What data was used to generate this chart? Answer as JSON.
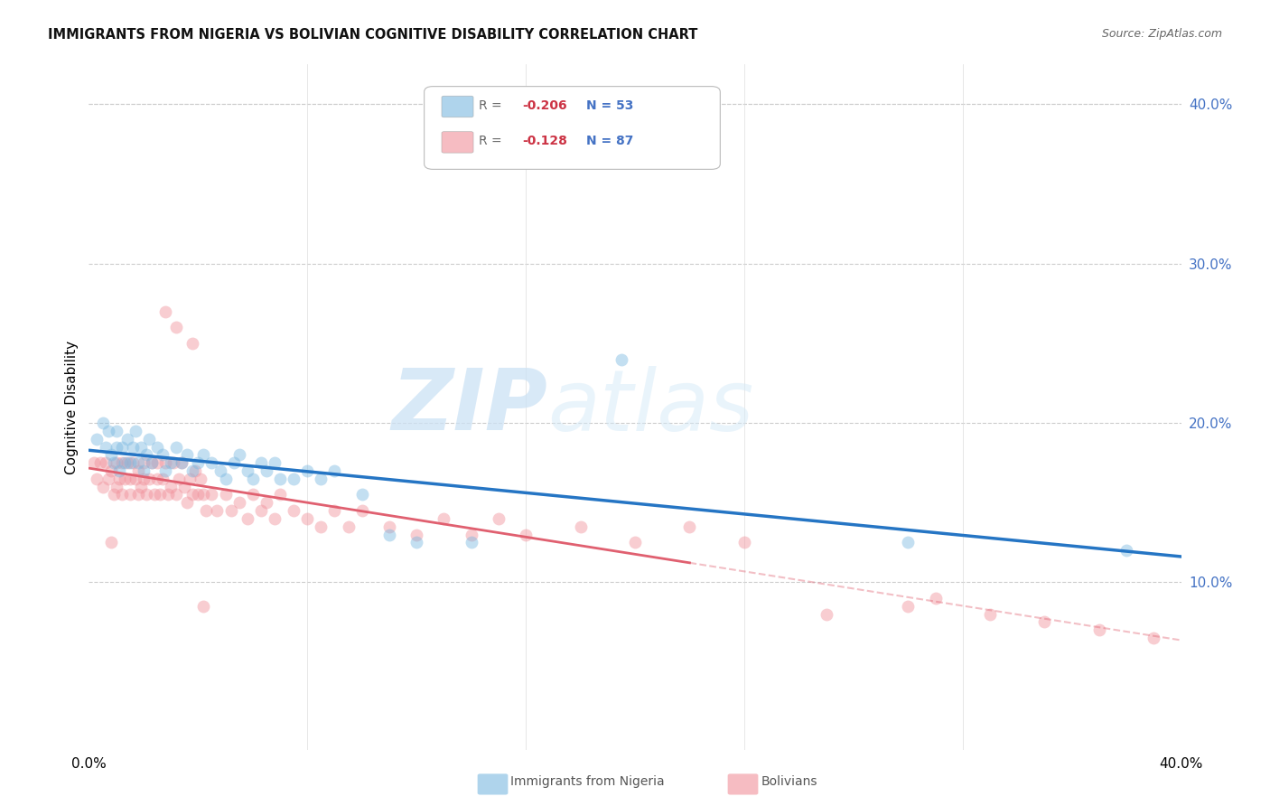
{
  "title": "IMMIGRANTS FROM NIGERIA VS BOLIVIAN COGNITIVE DISABILITY CORRELATION CHART",
  "source": "Source: ZipAtlas.com",
  "ylabel": "Cognitive Disability",
  "xlim": [
    0.0,
    0.4
  ],
  "ylim": [
    -0.005,
    0.425
  ],
  "yticks": [
    0.1,
    0.2,
    0.3,
    0.4
  ],
  "ytick_labels": [
    "10.0%",
    "20.0%",
    "30.0%",
    "40.0%"
  ],
  "nigeria_color": "#7ab8e0",
  "bolivia_color": "#f0909a",
  "nigeria_line_color": "#2575c4",
  "bolivia_line_color": "#e06070",
  "watermark_zip_color": "#cce0f0",
  "watermark_atlas_color": "#d8eaf8",
  "nigeria_R": -0.206,
  "nigeria_N": 53,
  "bolivia_R": -0.128,
  "bolivia_N": 87,
  "nigeria_scatter_x": [
    0.003,
    0.005,
    0.006,
    0.007,
    0.008,
    0.009,
    0.01,
    0.01,
    0.011,
    0.012,
    0.013,
    0.014,
    0.015,
    0.016,
    0.017,
    0.018,
    0.019,
    0.02,
    0.021,
    0.022,
    0.023,
    0.025,
    0.027,
    0.028,
    0.03,
    0.032,
    0.034,
    0.036,
    0.038,
    0.04,
    0.042,
    0.045,
    0.048,
    0.05,
    0.053,
    0.055,
    0.058,
    0.06,
    0.063,
    0.065,
    0.068,
    0.07,
    0.075,
    0.08,
    0.085,
    0.09,
    0.1,
    0.11,
    0.12,
    0.14,
    0.195,
    0.3,
    0.38
  ],
  "nigeria_scatter_y": [
    0.19,
    0.2,
    0.185,
    0.195,
    0.18,
    0.175,
    0.185,
    0.195,
    0.17,
    0.185,
    0.175,
    0.19,
    0.175,
    0.185,
    0.195,
    0.175,
    0.185,
    0.17,
    0.18,
    0.19,
    0.175,
    0.185,
    0.18,
    0.17,
    0.175,
    0.185,
    0.175,
    0.18,
    0.17,
    0.175,
    0.18,
    0.175,
    0.17,
    0.165,
    0.175,
    0.18,
    0.17,
    0.165,
    0.175,
    0.17,
    0.175,
    0.165,
    0.165,
    0.17,
    0.165,
    0.17,
    0.155,
    0.13,
    0.125,
    0.125,
    0.24,
    0.125,
    0.12
  ],
  "bolivia_scatter_x": [
    0.002,
    0.003,
    0.004,
    0.005,
    0.006,
    0.007,
    0.008,
    0.008,
    0.009,
    0.01,
    0.01,
    0.011,
    0.012,
    0.012,
    0.013,
    0.014,
    0.015,
    0.015,
    0.016,
    0.017,
    0.018,
    0.018,
    0.019,
    0.02,
    0.02,
    0.021,
    0.022,
    0.023,
    0.024,
    0.025,
    0.025,
    0.026,
    0.027,
    0.028,
    0.029,
    0.03,
    0.031,
    0.032,
    0.033,
    0.034,
    0.035,
    0.036,
    0.037,
    0.038,
    0.039,
    0.04,
    0.041,
    0.042,
    0.043,
    0.045,
    0.047,
    0.05,
    0.052,
    0.055,
    0.058,
    0.06,
    0.063,
    0.065,
    0.068,
    0.07,
    0.075,
    0.08,
    0.085,
    0.09,
    0.095,
    0.1,
    0.11,
    0.12,
    0.13,
    0.14,
    0.15,
    0.16,
    0.18,
    0.2,
    0.22,
    0.24,
    0.27,
    0.3,
    0.31,
    0.33,
    0.35,
    0.37,
    0.39,
    0.028,
    0.032,
    0.038,
    0.042
  ],
  "bolivia_scatter_y": [
    0.175,
    0.165,
    0.175,
    0.16,
    0.175,
    0.165,
    0.125,
    0.17,
    0.155,
    0.175,
    0.16,
    0.165,
    0.175,
    0.155,
    0.165,
    0.175,
    0.165,
    0.155,
    0.175,
    0.165,
    0.155,
    0.17,
    0.16,
    0.175,
    0.165,
    0.155,
    0.165,
    0.175,
    0.155,
    0.165,
    0.175,
    0.155,
    0.165,
    0.175,
    0.155,
    0.16,
    0.175,
    0.155,
    0.165,
    0.175,
    0.16,
    0.15,
    0.165,
    0.155,
    0.17,
    0.155,
    0.165,
    0.155,
    0.145,
    0.155,
    0.145,
    0.155,
    0.145,
    0.15,
    0.14,
    0.155,
    0.145,
    0.15,
    0.14,
    0.155,
    0.145,
    0.14,
    0.135,
    0.145,
    0.135,
    0.145,
    0.135,
    0.13,
    0.14,
    0.13,
    0.14,
    0.13,
    0.135,
    0.125,
    0.135,
    0.125,
    0.08,
    0.085,
    0.09,
    0.08,
    0.075,
    0.07,
    0.065,
    0.27,
    0.26,
    0.25,
    0.085
  ]
}
